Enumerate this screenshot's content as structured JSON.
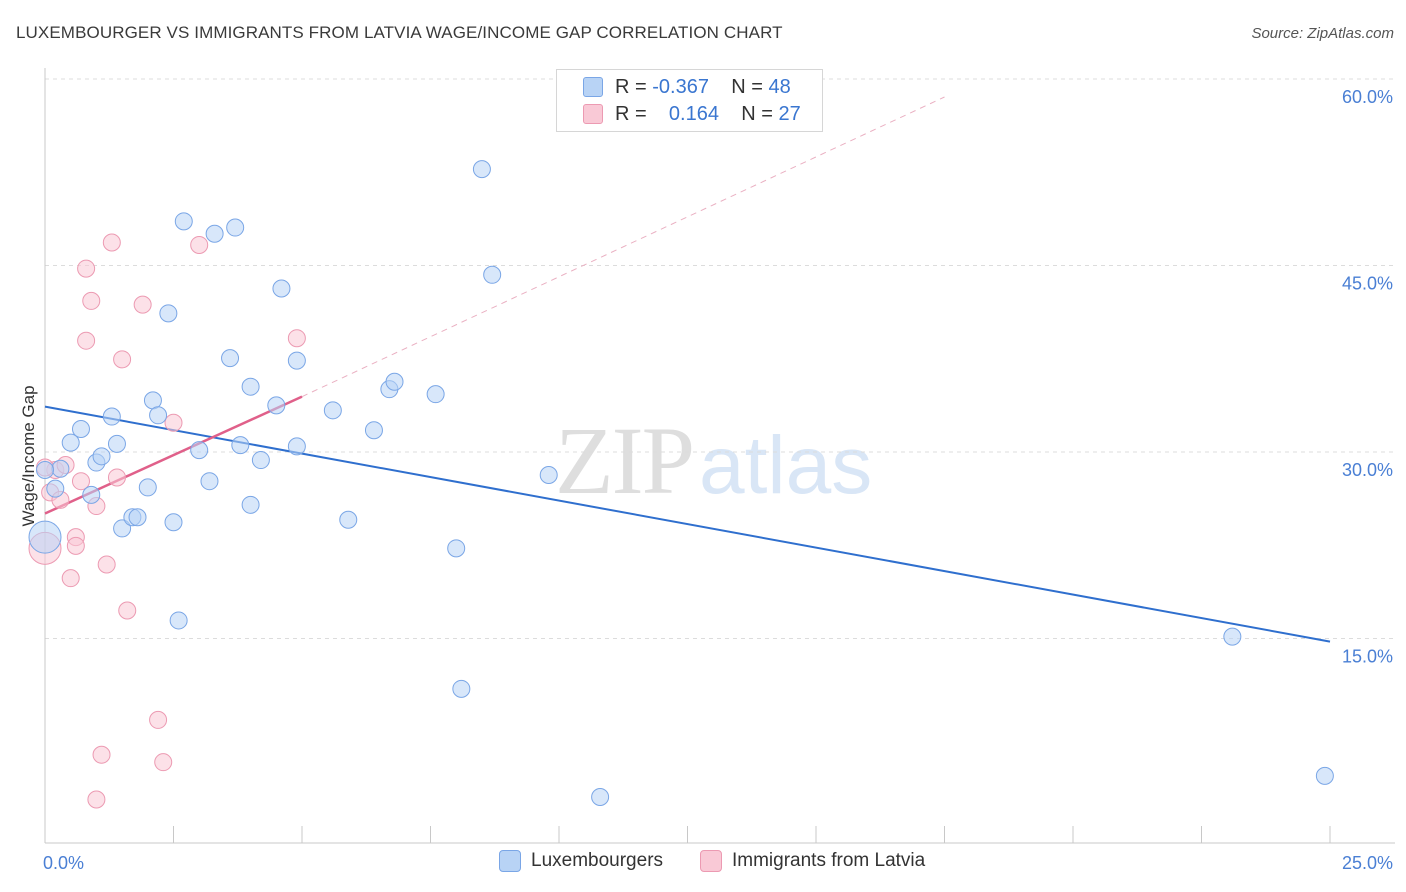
{
  "title": "LUXEMBOURGER VS IMMIGRANTS FROM LATVIA WAGE/INCOME GAP CORRELATION CHART",
  "source": "Source: ZipAtlas.com",
  "watermark": {
    "zip": "ZIP",
    "atlas": "atlas"
  },
  "legend": {
    "rows": [
      {
        "r_label": "R =",
        "r_value": "-0.367",
        "n_label": "N =",
        "n_value": "48",
        "color": "#b8d3f5",
        "border": "#7aa6e6"
      },
      {
        "r_label": "R =",
        "r_value": "0.164",
        "n_label": "N =",
        "n_value": "27",
        "color": "#f9c9d6",
        "border": "#ec9ab2"
      }
    ]
  },
  "bottom_legend": [
    {
      "label": "Luxembourgers",
      "color": "#b8d3f5",
      "border": "#7aa6e6"
    },
    {
      "label": "Immigrants from Latvia",
      "color": "#f9c9d6",
      "border": "#ec9ab2"
    }
  ],
  "chart_data": {
    "type": "scatter",
    "title": "LUXEMBOURGER VS IMMIGRANTS FROM LATVIA WAGE/INCOME GAP CORRELATION CHART",
    "xlabel": "",
    "ylabel": "Wage/Income Gap",
    "xlim": [
      0,
      25
    ],
    "ylim": [
      0,
      60
    ],
    "x_tick_labels": [
      {
        "value": 0,
        "label": "0.0%"
      },
      {
        "value": 25,
        "label": "25.0%"
      }
    ],
    "y_tick_labels": [
      {
        "value": 15,
        "label": "15.0%"
      },
      {
        "value": 30,
        "label": "30.0%"
      },
      {
        "value": 45,
        "label": "45.0%"
      },
      {
        "value": 60,
        "label": "60.0%"
      }
    ],
    "colors": {
      "blue_fill": "#b8d3f5",
      "blue_stroke": "#7aa6e6",
      "blue_line": "#2f6fce",
      "pink_fill": "#f9c9d6",
      "pink_stroke": "#ec9ab2",
      "pink_line": "#e0608a"
    },
    "series": [
      {
        "name": "Luxembourgers",
        "points": [
          [
            0.0,
            24.6
          ],
          [
            0.2,
            28.5
          ],
          [
            0.3,
            30.1
          ],
          [
            0.5,
            32.2
          ],
          [
            0.7,
            33.3
          ],
          [
            0.9,
            28.0
          ],
          [
            1.0,
            30.6
          ],
          [
            1.1,
            31.1
          ],
          [
            1.3,
            34.3
          ],
          [
            1.4,
            32.1
          ],
          [
            1.5,
            25.3
          ],
          [
            1.7,
            26.2
          ],
          [
            1.8,
            26.2
          ],
          [
            2.0,
            28.6
          ],
          [
            2.1,
            35.6
          ],
          [
            2.2,
            34.4
          ],
          [
            2.4,
            42.6
          ],
          [
            2.5,
            25.8
          ],
          [
            2.6,
            17.9
          ],
          [
            2.7,
            50.0
          ],
          [
            3.0,
            31.6
          ],
          [
            3.3,
            49.0
          ],
          [
            3.2,
            29.1
          ],
          [
            3.6,
            39.0
          ],
          [
            3.8,
            32.0
          ],
          [
            3.7,
            49.5
          ],
          [
            4.0,
            36.7
          ],
          [
            4.0,
            27.2
          ],
          [
            4.2,
            30.8
          ],
          [
            4.5,
            35.2
          ],
          [
            4.6,
            44.6
          ],
          [
            4.9,
            38.8
          ],
          [
            4.9,
            31.9
          ],
          [
            5.6,
            34.8
          ],
          [
            5.9,
            26.0
          ],
          [
            6.4,
            33.2
          ],
          [
            6.7,
            36.5
          ],
          [
            6.8,
            37.1
          ],
          [
            7.6,
            36.1
          ],
          [
            8.0,
            23.7
          ],
          [
            8.1,
            12.4
          ],
          [
            8.5,
            54.2
          ],
          [
            8.7,
            45.7
          ],
          [
            9.8,
            29.6
          ],
          [
            10.8,
            3.7
          ],
          [
            23.1,
            16.6
          ],
          [
            24.9,
            5.4
          ],
          [
            0.0,
            30.0
          ]
        ],
        "trend": {
          "x": [
            0,
            25
          ],
          "y": [
            35.1,
            16.2
          ]
        }
      },
      {
        "name": "Immigrants from Latvia",
        "points": [
          [
            0.0,
            23.7
          ],
          [
            0.1,
            28.2
          ],
          [
            0.2,
            30.0
          ],
          [
            0.3,
            27.6
          ],
          [
            0.4,
            30.4
          ],
          [
            0.5,
            21.3
          ],
          [
            0.6,
            24.6
          ],
          [
            0.6,
            23.9
          ],
          [
            0.7,
            29.1
          ],
          [
            0.8,
            46.2
          ],
          [
            0.8,
            40.4
          ],
          [
            0.9,
            43.6
          ],
          [
            1.0,
            27.1
          ],
          [
            1.1,
            7.1
          ],
          [
            1.0,
            3.5
          ],
          [
            1.2,
            22.4
          ],
          [
            1.3,
            48.3
          ],
          [
            1.4,
            29.4
          ],
          [
            1.5,
            38.9
          ],
          [
            1.6,
            18.7
          ],
          [
            1.9,
            43.3
          ],
          [
            2.2,
            9.9
          ],
          [
            2.3,
            6.5
          ],
          [
            2.5,
            33.8
          ],
          [
            3.0,
            48.1
          ],
          [
            4.9,
            40.6
          ],
          [
            0.0,
            30.2
          ]
        ],
        "trend": {
          "x": [
            0,
            5
          ],
          "y": [
            26.5,
            35.9
          ]
        },
        "trend_extension": {
          "x": [
            5,
            17.5
          ],
          "y": [
            35.9,
            60
          ]
        }
      }
    ]
  }
}
